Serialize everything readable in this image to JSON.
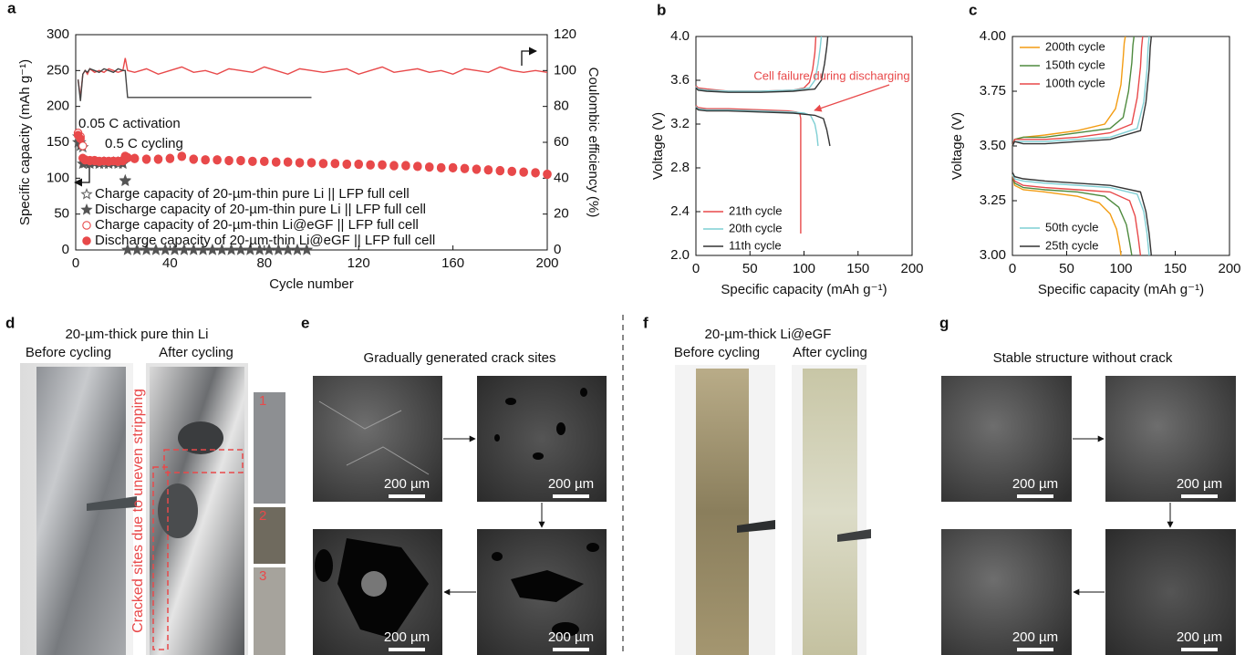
{
  "chart_data": [
    {
      "type": "line",
      "panel_label": "a",
      "xlabel": "Cycle number",
      "ylabel": "Specific capacity (mAh g⁻¹)",
      "y2label": "Coulombic efficiency (%)",
      "xlim": [
        0,
        200
      ],
      "xticks": [
        0,
        40,
        80,
        120,
        160,
        200
      ],
      "ylim": [
        0,
        300
      ],
      "yticks": [
        0,
        50,
        100,
        150,
        200,
        250,
        300
      ],
      "y2lim": [
        0,
        120
      ],
      "y2ticks": [
        0,
        20,
        40,
        60,
        80,
        100,
        120
      ],
      "legend": "lower left",
      "annotations": [
        "0.05 C activation",
        "0.5 C cycling"
      ],
      "series": [
        {
          "color": "#e8494a",
          "axis": "y2",
          "x": [
            1,
            2,
            3,
            4,
            5,
            6,
            8,
            10,
            12,
            14,
            16,
            18,
            20,
            21,
            22,
            25,
            30,
            35,
            40,
            45,
            50,
            55,
            60,
            65,
            70,
            75,
            80,
            85,
            90,
            95,
            100,
            105,
            110,
            115,
            120,
            125,
            130,
            135,
            140,
            145,
            150,
            155,
            160,
            165,
            170,
            175,
            180,
            185,
            190,
            195,
            200
          ],
          "values": [
            95,
            85,
            98,
            100,
            98,
            101,
            99,
            100,
            99,
            101,
            100,
            99,
            100,
            107,
            100,
            99,
            101,
            98,
            100,
            102,
            99,
            100,
            98,
            101,
            100,
            99,
            102,
            100,
            98,
            101,
            100,
            99,
            100,
            101,
            98,
            100,
            102,
            99,
            100,
            101,
            99,
            100,
            98,
            101,
            100,
            99,
            102,
            100,
            99,
            100,
            99
          ]
        },
        {
          "color": "#444444",
          "axis": "y2",
          "x": [
            1,
            2,
            3,
            4,
            5,
            6,
            8,
            10,
            12,
            14,
            16,
            18,
            20,
            21,
            22,
            40,
            60,
            80,
            100
          ],
          "values": [
            95,
            83,
            98,
            100,
            99,
            101,
            100,
            99,
            101,
            100,
            99,
            101,
            100,
            100,
            85,
            85,
            85,
            85,
            85
          ]
        },
        {
          "name": "Charge capacity of 20-µm-thin pure Li || LFP full cell",
          "color": "#666666",
          "marker": "star-open",
          "x": [
            1,
            2,
            3,
            4,
            6,
            8,
            10,
            12,
            14,
            16,
            18,
            20,
            21,
            22,
            26,
            30,
            34,
            38,
            42,
            46,
            50,
            54,
            58,
            62,
            66,
            70,
            74,
            78,
            82,
            86,
            90,
            94,
            98
          ],
          "values": [
            158,
            150,
            143,
            122,
            121,
            122,
            121,
            120,
            121,
            122,
            120,
            121,
            97,
            0,
            0,
            0,
            0,
            0,
            0,
            0,
            0,
            0,
            0,
            0,
            0,
            0,
            0,
            0,
            0,
            0,
            0,
            0,
            0
          ]
        },
        {
          "name": "Discharge capacity of 20-µm-thin pure Li || LFP full cell",
          "color": "#555555",
          "marker": "star",
          "x": [
            1,
            2,
            3,
            4,
            6,
            8,
            10,
            12,
            14,
            16,
            18,
            20,
            21,
            22,
            26,
            30,
            34,
            38,
            42,
            46,
            50,
            54,
            58,
            62,
            66,
            70,
            74,
            78,
            82,
            86,
            90,
            94,
            98
          ],
          "values": [
            150,
            145,
            120,
            121,
            120,
            121,
            120,
            122,
            120,
            121,
            122,
            120,
            96,
            0,
            0,
            0,
            0,
            0,
            0,
            0,
            0,
            0,
            0,
            0,
            0,
            0,
            0,
            0,
            0,
            0,
            0,
            0,
            0
          ]
        },
        {
          "name": "Charge capacity of 20-µm-thin Li@eGF || LFP full cell",
          "color": "#e8494a",
          "marker": "circle-open",
          "x": [
            1,
            2,
            3,
            4,
            6,
            8,
            10,
            12,
            14,
            16,
            18,
            20,
            21,
            22,
            25,
            30,
            35,
            40,
            45,
            50,
            55,
            60,
            65,
            70,
            75,
            80,
            85,
            90,
            95,
            100,
            105,
            110,
            115,
            120,
            125,
            130,
            135,
            140,
            145,
            150,
            155,
            160,
            165,
            170,
            175,
            180,
            185,
            190,
            195,
            200
          ],
          "values": [
            163,
            158,
            145,
            126,
            125,
            125,
            124,
            124,
            124,
            124,
            124,
            125,
            131,
            129,
            128,
            127,
            127,
            128,
            131,
            127,
            126,
            126,
            125,
            125,
            124,
            124,
            123,
            123,
            122,
            122,
            121,
            121,
            120,
            120,
            119,
            119,
            118,
            118,
            117,
            116,
            115,
            115,
            114,
            113,
            112,
            111,
            110,
            109,
            108,
            106
          ]
        },
        {
          "name": "Discharge capacity of 20-µm-thin Li@eGF || LFP full cell",
          "color": "#e8494a",
          "marker": "circle",
          "x": [
            1,
            2,
            3,
            4,
            6,
            8,
            10,
            12,
            14,
            16,
            18,
            20,
            21,
            22,
            25,
            30,
            35,
            40,
            45,
            50,
            55,
            60,
            65,
            70,
            75,
            80,
            85,
            90,
            95,
            100,
            105,
            110,
            115,
            120,
            125,
            130,
            135,
            140,
            145,
            150,
            155,
            160,
            165,
            170,
            175,
            180,
            185,
            190,
            195,
            200
          ],
          "values": [
            160,
            155,
            128,
            125,
            124,
            124,
            123,
            124,
            123,
            124,
            123,
            124,
            130,
            128,
            127,
            126,
            126,
            127,
            130,
            126,
            125,
            125,
            124,
            124,
            123,
            123,
            122,
            122,
            121,
            121,
            120,
            120,
            119,
            119,
            118,
            118,
            117,
            117,
            116,
            115,
            114,
            114,
            113,
            112,
            111,
            110,
            109,
            108,
            107,
            105
          ]
        }
      ]
    },
    {
      "type": "line",
      "panel_label": "b",
      "xlabel": "Specific capacity (mAh g⁻¹)",
      "ylabel": "Voltage (V)",
      "xlim": [
        0,
        200
      ],
      "xticks": [
        0,
        50,
        100,
        150,
        200
      ],
      "ylim": [
        2,
        4
      ],
      "yticks": [
        {
          "value": 2,
          "label": "2.0"
        },
        2.4,
        2.8,
        3.2,
        3.6,
        {
          "value": 4,
          "label": "4.0"
        }
      ],
      "legend": "lower left",
      "annotations": [
        "Cell failure during discharging"
      ],
      "series": [
        {
          "name": "21th cycle",
          "color": "#e8494a",
          "x": [
            0,
            2,
            10,
            30,
            60,
            90,
            100,
            105,
            108,
            110,
            111,
            null,
            0,
            2,
            10,
            30,
            60,
            85,
            93,
            96,
            97,
            97,
            97
          ],
          "values": [
            3.55,
            3.53,
            3.52,
            3.5,
            3.5,
            3.51,
            3.53,
            3.58,
            3.7,
            3.85,
            4.0,
            null,
            3.37,
            3.35,
            3.34,
            3.34,
            3.33,
            3.32,
            3.31,
            3.3,
            3.25,
            2.8,
            2.2
          ]
        },
        {
          "name": "20th cycle",
          "color": "#7fcfd4",
          "x": [
            0,
            2,
            10,
            30,
            60,
            90,
            105,
            110,
            113,
            115,
            116,
            null,
            0,
            2,
            10,
            30,
            60,
            90,
            100,
            106,
            110,
            112,
            113
          ],
          "values": [
            3.54,
            3.52,
            3.51,
            3.5,
            3.5,
            3.51,
            3.53,
            3.6,
            3.75,
            3.9,
            4.0,
            null,
            3.36,
            3.34,
            3.33,
            3.33,
            3.32,
            3.31,
            3.3,
            3.28,
            3.2,
            3.1,
            3.0
          ]
        },
        {
          "name": "11th cycle",
          "color": "#333333",
          "x": [
            0,
            2,
            10,
            30,
            60,
            90,
            110,
            116,
            119,
            121,
            122,
            null,
            0,
            2,
            10,
            30,
            60,
            90,
            110,
            118,
            121,
            123,
            124
          ],
          "values": [
            3.53,
            3.51,
            3.5,
            3.49,
            3.49,
            3.5,
            3.52,
            3.6,
            3.75,
            3.9,
            4.0,
            null,
            3.35,
            3.33,
            3.32,
            3.32,
            3.31,
            3.3,
            3.28,
            3.25,
            3.15,
            3.05,
            3.0
          ]
        }
      ]
    },
    {
      "type": "line",
      "panel_label": "c",
      "xlabel": "Specific capacity (mAh g⁻¹)",
      "ylabel": "Voltage (V)",
      "xlim": [
        0,
        200
      ],
      "xticks": [
        0,
        50,
        100,
        150,
        200
      ],
      "ylim": [
        3,
        4
      ],
      "yticks": [
        {
          "value": 3,
          "label": "3.00"
        },
        3.25,
        {
          "value": 3.5,
          "label": "3.50"
        },
        3.75,
        {
          "value": 4,
          "label": "4.00"
        }
      ],
      "series": [
        {
          "name": "200th cycle",
          "color": "#f39c12",
          "legend": "upper left",
          "x": [
            0,
            2,
            10,
            30,
            60,
            85,
            95,
            100,
            102,
            103,
            104,
            null,
            0,
            2,
            10,
            30,
            60,
            80,
            90,
            96,
            99,
            100
          ],
          "values": [
            3.5,
            3.53,
            3.54,
            3.55,
            3.57,
            3.6,
            3.67,
            3.78,
            3.9,
            3.97,
            4.0,
            null,
            3.37,
            3.32,
            3.3,
            3.29,
            3.27,
            3.24,
            3.19,
            3.12,
            3.04,
            3.0
          ]
        },
        {
          "name": "150th cycle",
          "color": "#4e8a3e",
          "legend": "upper left",
          "x": [
            0,
            2,
            10,
            30,
            60,
            90,
            102,
            107,
            110,
            111,
            112,
            null,
            0,
            2,
            10,
            30,
            60,
            85,
            98,
            105,
            108,
            110
          ],
          "values": [
            3.5,
            3.53,
            3.54,
            3.54,
            3.56,
            3.58,
            3.63,
            3.75,
            3.88,
            3.96,
            4.0,
            null,
            3.37,
            3.33,
            3.31,
            3.3,
            3.29,
            3.27,
            3.22,
            3.14,
            3.06,
            3.0
          ]
        },
        {
          "name": "100th cycle",
          "color": "#e8494a",
          "legend": "upper left",
          "x": [
            0,
            2,
            10,
            30,
            60,
            90,
            110,
            115,
            118,
            119,
            120,
            null,
            0,
            2,
            10,
            30,
            60,
            90,
            108,
            113,
            116,
            118
          ],
          "values": [
            3.5,
            3.53,
            3.53,
            3.53,
            3.54,
            3.56,
            3.6,
            3.72,
            3.86,
            3.95,
            4.0,
            null,
            3.37,
            3.34,
            3.32,
            3.31,
            3.3,
            3.29,
            3.25,
            3.18,
            3.08,
            3.0
          ]
        },
        {
          "name": "50th cycle",
          "color": "#7fcfd4",
          "legend": "lower left",
          "x": [
            0,
            2,
            10,
            30,
            60,
            90,
            115,
            121,
            124,
            125,
            126,
            null,
            0,
            2,
            10,
            30,
            60,
            90,
            115,
            121,
            124,
            126
          ],
          "values": [
            3.5,
            3.52,
            3.52,
            3.52,
            3.53,
            3.54,
            3.58,
            3.7,
            3.85,
            3.95,
            4.0,
            null,
            3.37,
            3.35,
            3.34,
            3.33,
            3.32,
            3.31,
            3.28,
            3.2,
            3.1,
            3.0
          ]
        },
        {
          "name": "25th cycle",
          "color": "#333333",
          "legend": "lower left",
          "x": [
            0,
            2,
            10,
            30,
            60,
            90,
            118,
            123,
            126,
            127,
            128,
            null,
            0,
            2,
            10,
            30,
            60,
            90,
            118,
            123,
            126,
            128
          ],
          "values": [
            3.5,
            3.52,
            3.51,
            3.51,
            3.52,
            3.53,
            3.57,
            3.7,
            3.85,
            3.95,
            4.0,
            null,
            3.38,
            3.36,
            3.35,
            3.34,
            3.33,
            3.32,
            3.29,
            3.2,
            3.1,
            3.0
          ]
        }
      ]
    }
  ],
  "panels": {
    "d": {
      "label": "d",
      "title": "20-µm-thick pure thin Li",
      "before": "Before cycling",
      "after": "After cycling",
      "annotation": "Cracked sites due to uneven stripping",
      "insets": [
        "1",
        "2",
        "3"
      ]
    },
    "e": {
      "label": "e",
      "title": "Gradually generated crack sites",
      "scale_bars": [
        "200 µm",
        "200 µm",
        "200 µm",
        "200 µm"
      ]
    },
    "f": {
      "label": "f",
      "title": "20-µm-thick Li@eGF",
      "before": "Before cycling",
      "after": "After cycling"
    },
    "g": {
      "label": "g",
      "title": "Stable structure without crack",
      "scale_bars": [
        "200 µm",
        "200 µm",
        "200 µm",
        "200 µm"
      ]
    }
  }
}
